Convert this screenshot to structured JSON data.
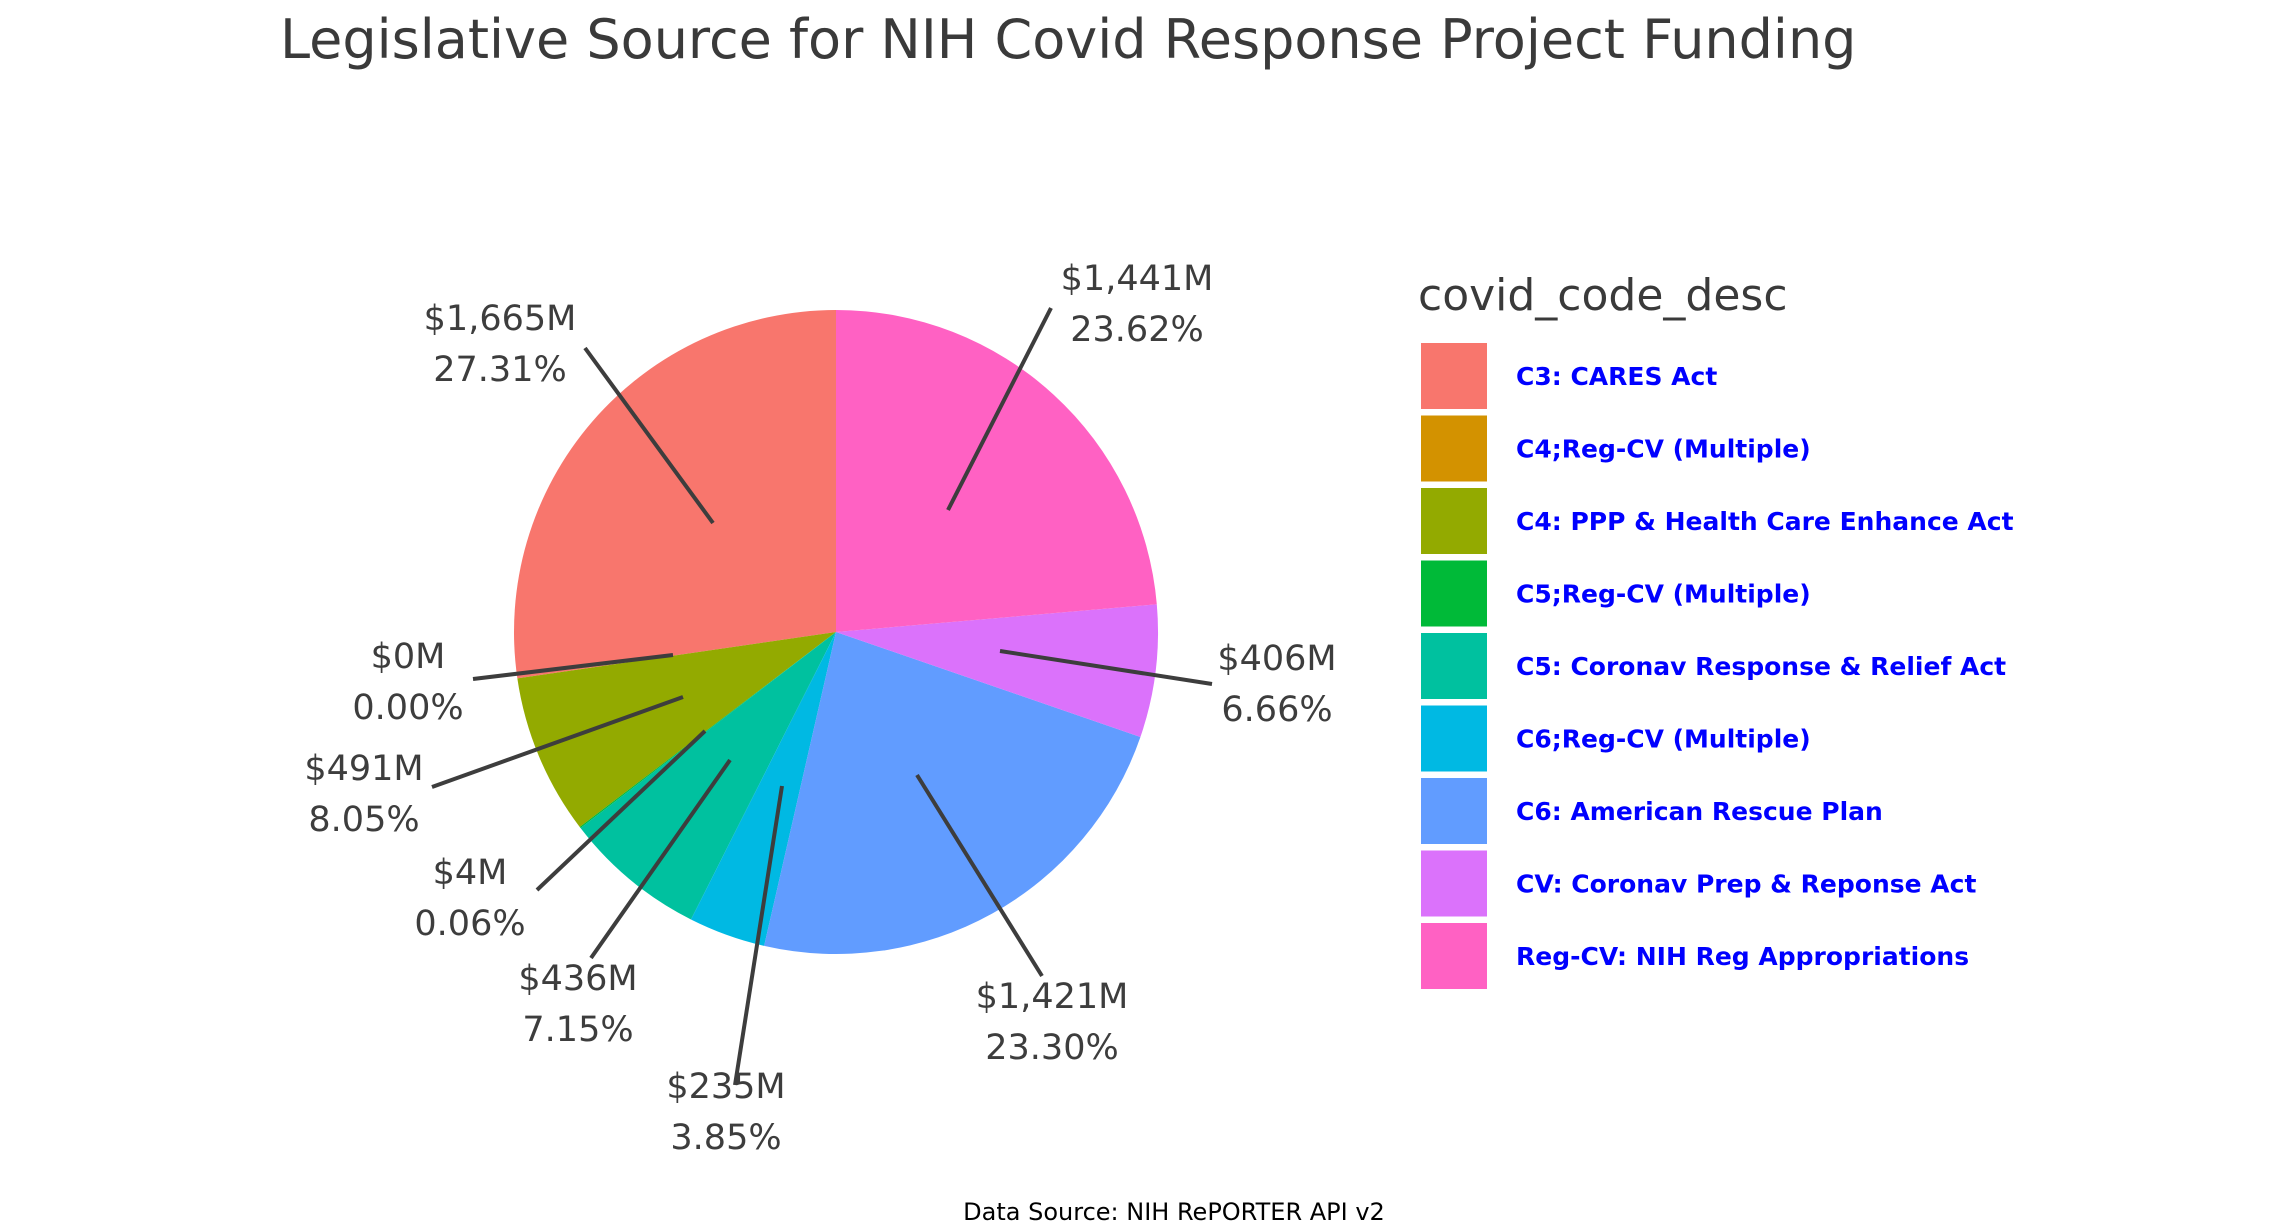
{
  "chart_data": {
    "type": "pie",
    "title": "Legislative Source for NIH Covid Response Project Funding",
    "caption": "Data Source: NIH RePORTER API v2",
    "legend_title": "covid_code_desc",
    "legend_position": "right",
    "legend_text_color": "#0000ff",
    "start_angle": "12 o'clock",
    "direction": "counter-clockwise",
    "slices": [
      {
        "category": "C3: CARES Act",
        "value": 1665,
        "amount_label": "$1,665M",
        "percent_label": "27.31%",
        "color": "#F8766D"
      },
      {
        "category": "C4;Reg-CV (Multiple)",
        "value": 0,
        "amount_label": "$0M",
        "percent_label": "0.00%",
        "color": "#D39200"
      },
      {
        "category": "C4: PPP & Health Care Enhance Act",
        "value": 491,
        "amount_label": "$491M",
        "percent_label": "8.05%",
        "color": "#93AA00"
      },
      {
        "category": "C5;Reg-CV (Multiple)",
        "value": 4,
        "amount_label": "$4M",
        "percent_label": "0.06%",
        "color": "#00BA38"
      },
      {
        "category": "C5: Coronav Response & Relief Act",
        "value": 436,
        "amount_label": "$436M",
        "percent_label": "7.15%",
        "color": "#00C19F"
      },
      {
        "category": "C6;Reg-CV (Multiple)",
        "value": 235,
        "amount_label": "$235M",
        "percent_label": "3.85%",
        "color": "#00B9E3"
      },
      {
        "category": "C6: American Rescue Plan",
        "value": 1421,
        "amount_label": "$1,421M",
        "percent_label": "23.30%",
        "color": "#619CFF"
      },
      {
        "category": "CV: Coronav Prep & Reponse Act",
        "value": 406,
        "amount_label": "$406M",
        "percent_label": "6.66%",
        "color": "#DB72FB"
      },
      {
        "category": "Reg-CV: NIH Reg Appropriations",
        "value": 1441,
        "amount_label": "$1,441M",
        "percent_label": "23.62%",
        "color": "#FF61C3"
      }
    ]
  }
}
